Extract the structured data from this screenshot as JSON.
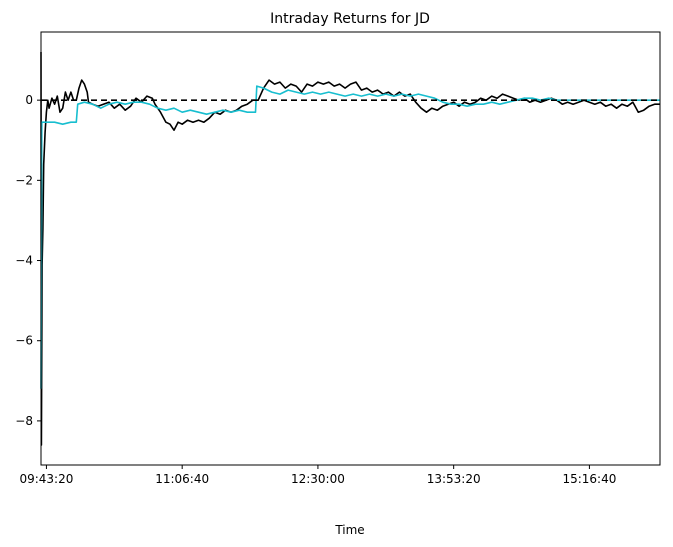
{
  "chart_data": {
    "type": "line",
    "title": "Intraday Returns for JD",
    "xlabel": "Time",
    "ylabel": "",
    "x_unit": "time of day (seconds since midnight)",
    "xlim": [
      34800,
      57600
    ],
    "ylim": [
      -9.1,
      1.7
    ],
    "x_ticks": [
      {
        "value": 35000,
        "label": "09:43:20"
      },
      {
        "value": 40000,
        "label": "11:06:40"
      },
      {
        "value": 45000,
        "label": "12:30:00"
      },
      {
        "value": 50000,
        "label": "13:53:20"
      },
      {
        "value": 55000,
        "label": "15:16:40"
      }
    ],
    "y_ticks": [
      {
        "value": -8,
        "label": "−8"
      },
      {
        "value": -6,
        "label": "−6"
      },
      {
        "value": -4,
        "label": "−4"
      },
      {
        "value": -2,
        "label": "−2"
      },
      {
        "value": 0,
        "label": "0"
      }
    ],
    "grid": false,
    "legend": "none",
    "reference_line": {
      "y": 0,
      "style": "dashed",
      "color": "#000000"
    },
    "series": [
      {
        "color": "#000000",
        "points": [
          [
            34800,
            1.2
          ],
          [
            34815,
            -8.6
          ],
          [
            34840,
            -4.1
          ],
          [
            34870,
            -3.2
          ],
          [
            34900,
            -1.6
          ],
          [
            34950,
            -0.8
          ],
          [
            35000,
            -0.3
          ],
          [
            35050,
            0.0
          ],
          [
            35100,
            -0.2
          ],
          [
            35200,
            0.05
          ],
          [
            35300,
            -0.1
          ],
          [
            35400,
            0.1
          ],
          [
            35500,
            -0.3
          ],
          [
            35600,
            -0.2
          ],
          [
            35700,
            0.2
          ],
          [
            35800,
            0.0
          ],
          [
            35900,
            0.2
          ],
          [
            36000,
            0.0
          ],
          [
            36100,
            0.0
          ],
          [
            36200,
            0.3
          ],
          [
            36300,
            0.5
          ],
          [
            36400,
            0.4
          ],
          [
            36500,
            0.2
          ],
          [
            36550,
            -0.05
          ],
          [
            36700,
            -0.1
          ],
          [
            36900,
            -0.15
          ],
          [
            37100,
            -0.1
          ],
          [
            37300,
            -0.05
          ],
          [
            37500,
            -0.2
          ],
          [
            37700,
            -0.1
          ],
          [
            37900,
            -0.25
          ],
          [
            38100,
            -0.15
          ],
          [
            38300,
            0.05
          ],
          [
            38500,
            -0.05
          ],
          [
            38700,
            0.1
          ],
          [
            38900,
            0.05
          ],
          [
            39000,
            -0.1
          ],
          [
            39200,
            -0.3
          ],
          [
            39400,
            -0.55
          ],
          [
            39550,
            -0.6
          ],
          [
            39700,
            -0.75
          ],
          [
            39850,
            -0.55
          ],
          [
            40000,
            -0.6
          ],
          [
            40200,
            -0.5
          ],
          [
            40400,
            -0.55
          ],
          [
            40600,
            -0.5
          ],
          [
            40800,
            -0.55
          ],
          [
            41000,
            -0.45
          ],
          [
            41200,
            -0.3
          ],
          [
            41400,
            -0.35
          ],
          [
            41600,
            -0.25
          ],
          [
            41800,
            -0.3
          ],
          [
            42000,
            -0.25
          ],
          [
            42200,
            -0.15
          ],
          [
            42400,
            -0.1
          ],
          [
            42600,
            0.0
          ],
          [
            42800,
            0.0
          ],
          [
            43000,
            0.3
          ],
          [
            43200,
            0.5
          ],
          [
            43400,
            0.4
          ],
          [
            43600,
            0.45
          ],
          [
            43800,
            0.3
          ],
          [
            44000,
            0.4
          ],
          [
            44200,
            0.35
          ],
          [
            44400,
            0.2
          ],
          [
            44600,
            0.4
          ],
          [
            44800,
            0.35
          ],
          [
            45000,
            0.45
          ],
          [
            45200,
            0.4
          ],
          [
            45400,
            0.45
          ],
          [
            45600,
            0.35
          ],
          [
            45800,
            0.4
          ],
          [
            46000,
            0.3
          ],
          [
            46200,
            0.4
          ],
          [
            46400,
            0.45
          ],
          [
            46600,
            0.25
          ],
          [
            46800,
            0.3
          ],
          [
            47000,
            0.2
          ],
          [
            47200,
            0.25
          ],
          [
            47400,
            0.15
          ],
          [
            47600,
            0.2
          ],
          [
            47800,
            0.1
          ],
          [
            48000,
            0.2
          ],
          [
            48200,
            0.1
          ],
          [
            48400,
            0.15
          ],
          [
            48600,
            -0.05
          ],
          [
            48800,
            -0.2
          ],
          [
            49000,
            -0.3
          ],
          [
            49200,
            -0.2
          ],
          [
            49400,
            -0.25
          ],
          [
            49600,
            -0.15
          ],
          [
            49800,
            -0.1
          ],
          [
            50000,
            -0.05
          ],
          [
            50200,
            -0.15
          ],
          [
            50400,
            -0.05
          ],
          [
            50600,
            -0.1
          ],
          [
            50800,
            -0.05
          ],
          [
            51000,
            0.05
          ],
          [
            51200,
            0.0
          ],
          [
            51400,
            0.1
          ],
          [
            51600,
            0.05
          ],
          [
            51800,
            0.15
          ],
          [
            52000,
            0.1
          ],
          [
            52200,
            0.05
          ],
          [
            52400,
            0.0
          ],
          [
            52600,
            0.05
          ],
          [
            52800,
            -0.05
          ],
          [
            53000,
            0.0
          ],
          [
            53200,
            -0.05
          ],
          [
            53400,
            0.0
          ],
          [
            53600,
            0.05
          ],
          [
            53800,
            0.0
          ],
          [
            54000,
            -0.1
          ],
          [
            54200,
            -0.05
          ],
          [
            54400,
            -0.1
          ],
          [
            54600,
            -0.05
          ],
          [
            54800,
            0.0
          ],
          [
            55000,
            -0.05
          ],
          [
            55200,
            -0.1
          ],
          [
            55400,
            -0.05
          ],
          [
            55600,
            -0.15
          ],
          [
            55800,
            -0.1
          ],
          [
            56000,
            -0.2
          ],
          [
            56200,
            -0.1
          ],
          [
            56400,
            -0.15
          ],
          [
            56600,
            -0.05
          ],
          [
            56800,
            -0.3
          ],
          [
            57000,
            -0.25
          ],
          [
            57200,
            -0.15
          ],
          [
            57400,
            -0.1
          ],
          [
            57600,
            -0.1
          ]
        ]
      },
      {
        "color": "#17becf",
        "points": [
          [
            34800,
            -7.2
          ],
          [
            34830,
            -0.55
          ],
          [
            35000,
            -0.55
          ],
          [
            35300,
            -0.55
          ],
          [
            35600,
            -0.6
          ],
          [
            35900,
            -0.55
          ],
          [
            36100,
            -0.55
          ],
          [
            36150,
            -0.1
          ],
          [
            36400,
            -0.05
          ],
          [
            36700,
            -0.1
          ],
          [
            37000,
            -0.2
          ],
          [
            37300,
            -0.1
          ],
          [
            37600,
            -0.05
          ],
          [
            37900,
            -0.1
          ],
          [
            38200,
            -0.05
          ],
          [
            38500,
            -0.05
          ],
          [
            38800,
            -0.1
          ],
          [
            39100,
            -0.2
          ],
          [
            39400,
            -0.25
          ],
          [
            39700,
            -0.2
          ],
          [
            40000,
            -0.3
          ],
          [
            40300,
            -0.25
          ],
          [
            40600,
            -0.3
          ],
          [
            40900,
            -0.35
          ],
          [
            41200,
            -0.3
          ],
          [
            41500,
            -0.25
          ],
          [
            41800,
            -0.3
          ],
          [
            42100,
            -0.25
          ],
          [
            42400,
            -0.3
          ],
          [
            42700,
            -0.3
          ],
          [
            42750,
            0.35
          ],
          [
            43000,
            0.3
          ],
          [
            43300,
            0.2
          ],
          [
            43600,
            0.15
          ],
          [
            43900,
            0.25
          ],
          [
            44200,
            0.2
          ],
          [
            44500,
            0.15
          ],
          [
            44800,
            0.2
          ],
          [
            45100,
            0.15
          ],
          [
            45400,
            0.2
          ],
          [
            45700,
            0.15
          ],
          [
            46000,
            0.1
          ],
          [
            46300,
            0.15
          ],
          [
            46600,
            0.1
          ],
          [
            46900,
            0.15
          ],
          [
            47200,
            0.1
          ],
          [
            47500,
            0.15
          ],
          [
            47800,
            0.1
          ],
          [
            48100,
            0.15
          ],
          [
            48400,
            0.1
          ],
          [
            48700,
            0.15
          ],
          [
            49000,
            0.1
          ],
          [
            49300,
            0.05
          ],
          [
            49600,
            -0.05
          ],
          [
            49900,
            -0.1
          ],
          [
            50200,
            -0.1
          ],
          [
            50500,
            -0.15
          ],
          [
            50800,
            -0.1
          ],
          [
            51100,
            -0.1
          ],
          [
            51400,
            -0.05
          ],
          [
            51700,
            -0.1
          ],
          [
            52000,
            -0.05
          ],
          [
            52300,
            0.0
          ],
          [
            52600,
            0.05
          ],
          [
            52900,
            0.05
          ],
          [
            53200,
            0.0
          ],
          [
            53500,
            0.05
          ],
          [
            53800,
            0.0
          ],
          [
            54100,
            0.0
          ],
          [
            54400,
            0.0
          ],
          [
            54700,
            0.0
          ],
          [
            55000,
            0.0
          ],
          [
            55300,
            0.0
          ],
          [
            55600,
            0.0
          ],
          [
            55900,
            0.0
          ],
          [
            56200,
            0.0
          ],
          [
            56500,
            0.0
          ],
          [
            56800,
            0.0
          ],
          [
            57100,
            0.0
          ],
          [
            57400,
            0.0
          ],
          [
            57600,
            0.0
          ]
        ]
      }
    ]
  }
}
